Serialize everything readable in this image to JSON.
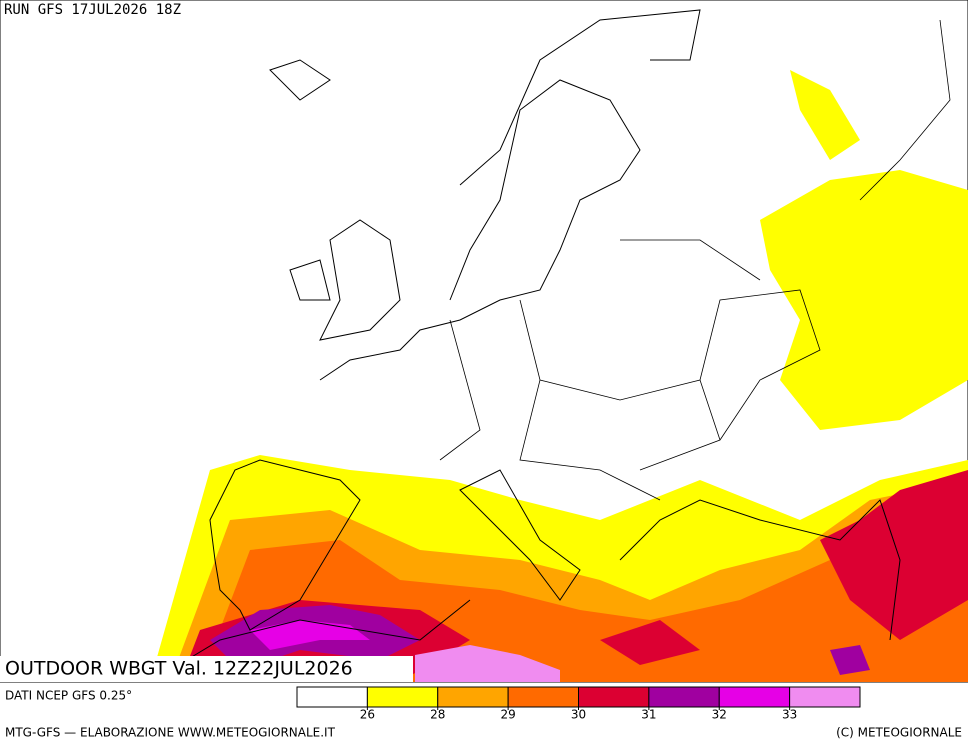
{
  "header": {
    "run": "RUN GFS 17JUL2026 18Z"
  },
  "map": {
    "title": "OUTDOOR WBGT Val. 12Z22JUL2026"
  },
  "footer": {
    "source": "DATI NCEP GFS 0.25°",
    "credit": "MTG-GFS — ELABORAZIONE WWW.METEOGIORNALE.IT",
    "copyright": "(C) METEOGIORNALE"
  },
  "legend": {
    "colors": [
      "#ffffff",
      "#ffff00",
      "#ffa500",
      "#ff6a00",
      "#dc0032",
      "#a000a0",
      "#e600e6",
      "#f08cf0"
    ],
    "ticks": [
      26,
      28,
      29,
      30,
      31,
      32,
      33
    ]
  }
}
